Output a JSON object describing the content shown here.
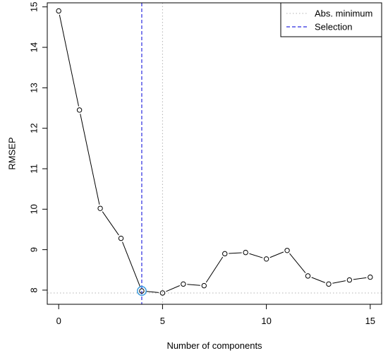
{
  "chart_data": {
    "type": "line",
    "title": "",
    "xlabel": "Number of components",
    "ylabel": "RMSEP",
    "xlim": [
      -0.55,
      15.55
    ],
    "ylim": [
      7.65,
      15.1
    ],
    "x_ticks": [
      0,
      5,
      10,
      15
    ],
    "y_ticks": [
      8,
      9,
      10,
      11,
      12,
      13,
      14,
      15
    ],
    "grid": false,
    "legend_position": "top-right",
    "series": [
      {
        "x": [
          0,
          1,
          2,
          3,
          4,
          5,
          6,
          7,
          8,
          9,
          10,
          11,
          12,
          13,
          14,
          15
        ],
        "values": [
          14.9,
          12.45,
          10.02,
          9.28,
          7.98,
          7.93,
          8.15,
          8.11,
          8.9,
          8.93,
          8.77,
          8.98,
          8.35,
          8.15,
          8.25,
          8.32
        ],
        "color": "#000000"
      }
    ],
    "reference_lines": [
      {
        "name": "Abs. minimum",
        "style": "dotted",
        "color": "#b3b3b3",
        "vertical_x": 5,
        "horizontal_y": 7.93
      },
      {
        "name": "Selection",
        "style": "dashed",
        "color": "#2a2adf",
        "vertical_x": 4
      }
    ],
    "highlight": {
      "x": 4,
      "y": 7.98,
      "color": "#3399dd"
    }
  }
}
